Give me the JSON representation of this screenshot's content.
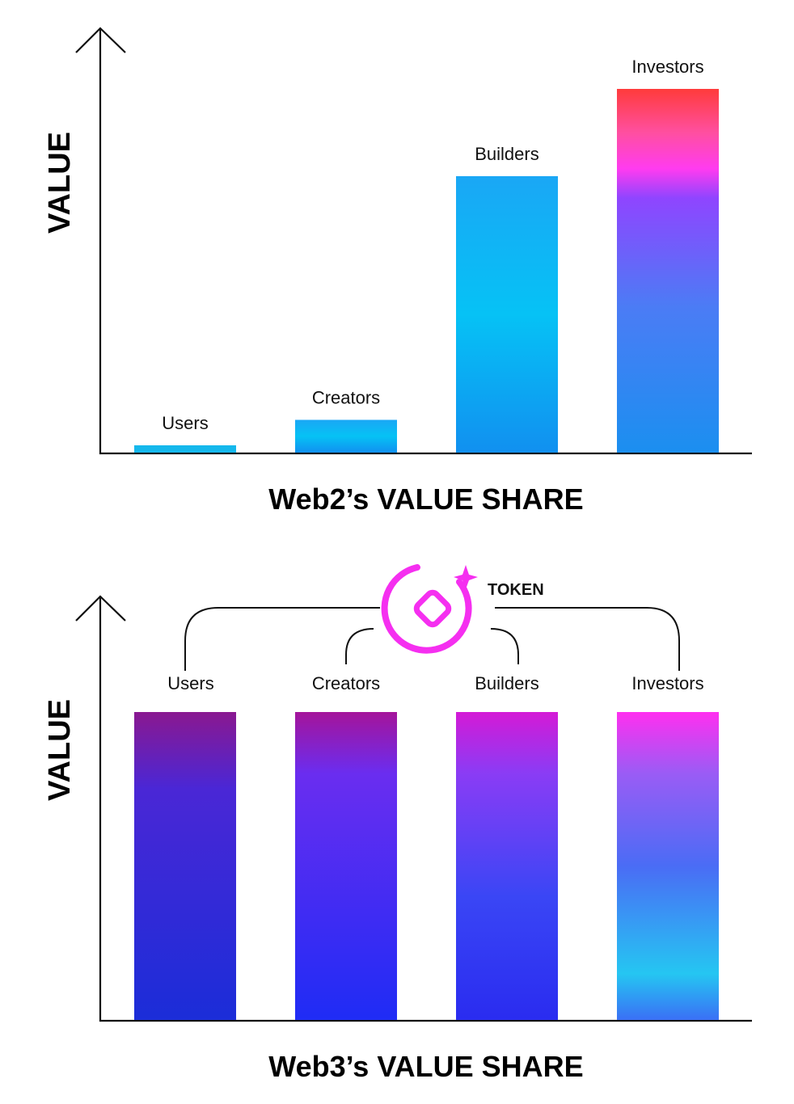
{
  "chart_data": [
    {
      "type": "bar",
      "title": "Web2’s VALUE SHARE",
      "ylabel": "VALUE",
      "xlabel": "",
      "categories": [
        "Users",
        "Creators",
        "Builders",
        "Investors"
      ],
      "values": [
        2,
        9,
        76,
        100
      ],
      "ylim": [
        0,
        110
      ],
      "grid": false
    },
    {
      "type": "bar",
      "title": "Web3’s VALUE SHARE",
      "ylabel": "VALUE",
      "xlabel": "",
      "categories": [
        "Users",
        "Creators",
        "Builders",
        "Investors"
      ],
      "values": [
        100,
        100,
        100,
        100
      ],
      "ylim": [
        0,
        110
      ],
      "grid": false,
      "annotation": {
        "label": "TOKEN",
        "icon": "token-icon",
        "connects": [
          "Users",
          "Creators",
          "Builders",
          "Investors"
        ]
      }
    }
  ],
  "colors": {
    "axis": "#111111",
    "web2_bar": "#0aa3f0",
    "investors_top": "#ff3b3b",
    "investors_mid": "#ff3bf0",
    "web3_top": "#9b1a9b",
    "web3_bottom": "#1c2ae6",
    "token": "#f52ff0"
  }
}
